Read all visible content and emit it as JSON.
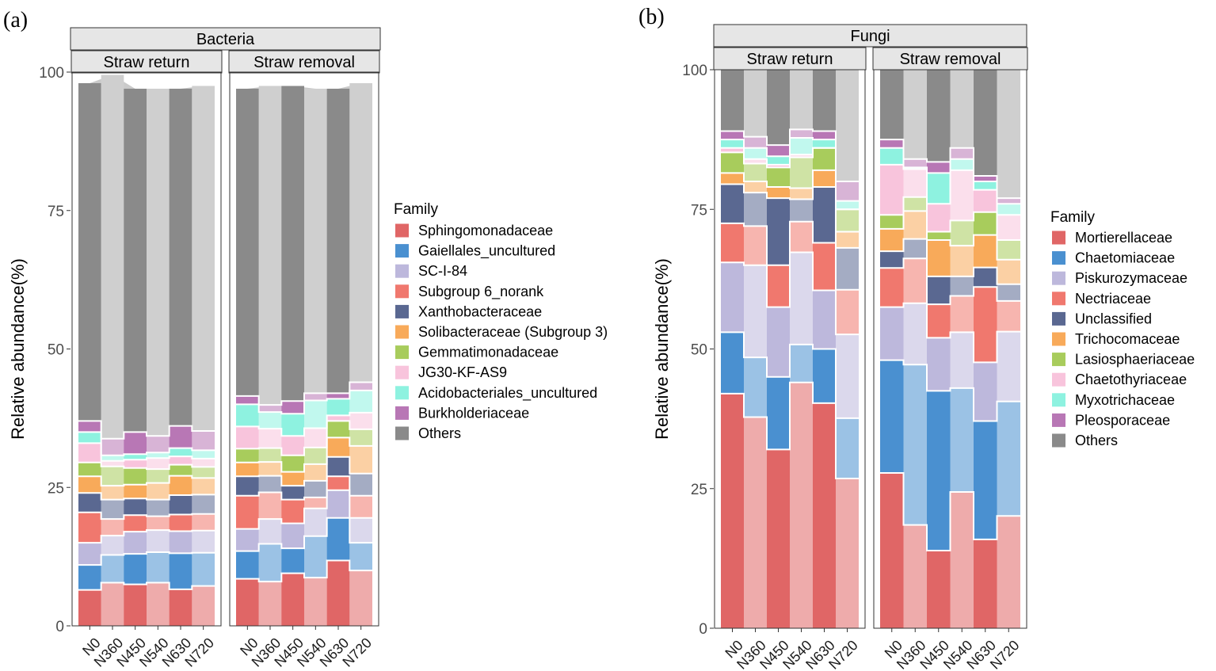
{
  "chart_data": [
    {
      "type": "bar",
      "panel_label": "(a)",
      "title": "Bacteria",
      "facets": [
        "Straw return",
        "Straw removal"
      ],
      "categories": [
        "N0",
        "N360",
        "N450",
        "N540",
        "N630",
        "N720"
      ],
      "ylabel": "Relative abundance(%)",
      "ylim": [
        0,
        100
      ],
      "yticks": [
        "0",
        "25",
        "50",
        "75",
        "100"
      ],
      "legend_title": "Family",
      "series": [
        {
          "name": "Sphingomonadaceae",
          "color": "#E06666",
          "values": [
            [
              6.5,
              7.8,
              7.5,
              7.8,
              6.6,
              7.2
            ],
            [
              8.5,
              8.0,
              9.5,
              8.7,
              11.8,
              10.0
            ]
          ]
        },
        {
          "name": "Gaiellales_uncultured",
          "color": "#4A90D0",
          "values": [
            [
              4.5,
              5.0,
              5.5,
              5.5,
              6.5,
              6.0
            ],
            [
              5.0,
              6.8,
              4.5,
              7.5,
              7.7,
              5.0
            ]
          ]
        },
        {
          "name": "SC-I-84",
          "color": "#BDB8DC",
          "values": [
            [
              4.0,
              3.5,
              4.0,
              4.0,
              4.0,
              4.0
            ],
            [
              4.0,
              4.5,
              4.5,
              5.0,
              5.0,
              4.5
            ]
          ]
        },
        {
          "name": "Subgroup 6_norank",
          "color": "#F0786E",
          "values": [
            [
              5.5,
              3.0,
              3.0,
              2.5,
              3.0,
              3.0
            ],
            [
              6.0,
              4.8,
              4.3,
              2.0,
              2.5,
              4.0
            ]
          ]
        },
        {
          "name": "Xanthobacteraceae",
          "color": "#5A6891",
          "values": [
            [
              3.5,
              3.5,
              3.0,
              3.0,
              3.5,
              3.5
            ],
            [
              3.5,
              3.0,
              2.5,
              3.0,
              3.5,
              4.0
            ]
          ]
        },
        {
          "name": "Solibacteraceae (Subgroup 3)",
          "color": "#F8AA5A",
          "values": [
            [
              3.0,
              2.5,
              2.5,
              3.0,
              3.5,
              3.0
            ],
            [
              2.5,
              2.5,
              2.5,
              3.0,
              3.5,
              5.0
            ]
          ]
        },
        {
          "name": "Gemmatimonadaceae",
          "color": "#A8CC5C",
          "values": [
            [
              2.5,
              3.5,
              3.0,
              2.5,
              2.0,
              2.0
            ],
            [
              2.5,
              2.5,
              3.0,
              3.0,
              3.0,
              3.0
            ]
          ]
        },
        {
          "name": "JG30-KF-AS9",
          "color": "#F8C4DC",
          "values": [
            [
              3.5,
              1.0,
              1.5,
              2.0,
              1.5,
              1.5
            ],
            [
              4.0,
              3.5,
              3.5,
              3.5,
              1.0,
              3.0
            ]
          ]
        },
        {
          "name": "Acidobacteriales_uncultured",
          "color": "#8EF2E0",
          "values": [
            [
              2.0,
              1.0,
              1.0,
              1.0,
              1.5,
              1.5
            ],
            [
              4.0,
              3.0,
              4.0,
              5.0,
              3.0,
              4.0
            ]
          ]
        },
        {
          "name": "Burkholderiaceae",
          "color": "#B877B5",
          "values": [
            [
              2.0,
              3.0,
              4.0,
              3.0,
              4.0,
              3.5
            ],
            [
              1.5,
              1.3,
              2.3,
              1.3,
              1.0,
              1.5
            ]
          ]
        },
        {
          "name": "Others",
          "color": "#8A8A8A",
          "values": [
            [
              61.0,
              65.7,
              62.0,
              62.7,
              60.9,
              62.3
            ],
            [
              55.5,
              57.6,
              56.9,
              55.0,
              55.0,
              54.0
            ]
          ]
        }
      ]
    },
    {
      "type": "bar",
      "panel_label": "(b)",
      "title": "Fungi",
      "facets": [
        "Straw return",
        "Straw removal"
      ],
      "categories": [
        "N0",
        "N360",
        "N450",
        "N540",
        "N630",
        "N720"
      ],
      "ylabel": "Relative abundance(%)",
      "ylim": [
        0,
        100
      ],
      "yticks": [
        "0",
        "25",
        "50",
        "75",
        "100"
      ],
      "legend_title": "Family",
      "series": [
        {
          "name": "Mortierellaceae",
          "color": "#E06666",
          "values": [
            [
              42.0,
              37.8,
              32.0,
              44.0,
              40.3,
              26.8
            ],
            [
              27.8,
              18.5,
              13.9,
              24.4,
              15.9,
              20.1
            ]
          ]
        },
        {
          "name": "Chaetomiaceae",
          "color": "#4A90D0",
          "values": [
            [
              11.0,
              10.7,
              13.0,
              6.8,
              9.7,
              10.8
            ],
            [
              20.2,
              28.7,
              28.6,
              18.6,
              21.2,
              20.5
            ]
          ]
        },
        {
          "name": "Piskurozymaceae",
          "color": "#BDB8DC",
          "values": [
            [
              12.5,
              16.5,
              12.5,
              16.5,
              10.5,
              15.0
            ],
            [
              9.5,
              11.0,
              9.5,
              10.0,
              10.5,
              12.5
            ]
          ]
        },
        {
          "name": "Nectriaceae",
          "color": "#F0786E",
          "values": [
            [
              7.0,
              7.0,
              7.5,
              5.5,
              8.5,
              8.0
            ],
            [
              7.0,
              8.0,
              6.0,
              6.5,
              13.5,
              5.5
            ]
          ]
        },
        {
          "name": "Unclassified",
          "color": "#5A6891",
          "values": [
            [
              7.0,
              6.0,
              12.0,
              4.0,
              10.0,
              7.5
            ],
            [
              3.0,
              3.5,
              5.0,
              3.5,
              3.5,
              3.0
            ]
          ]
        },
        {
          "name": "Trichocomaceae",
          "color": "#F8AA5A",
          "values": [
            [
              2.0,
              2.0,
              2.0,
              2.0,
              3.0,
              2.9
            ],
            [
              4.0,
              5.0,
              6.5,
              5.5,
              5.8,
              4.4
            ]
          ]
        },
        {
          "name": "Lasiosphaeriaceae",
          "color": "#A8CC5C",
          "values": [
            [
              3.7,
              3.2,
              3.5,
              5.5,
              4.0,
              4.0
            ],
            [
              2.5,
              2.5,
              1.5,
              4.5,
              4.1,
              3.5
            ]
          ]
        },
        {
          "name": "Chaetothyriaceae",
          "color": "#F8C4DC",
          "values": [
            [
              0.8,
              0.8,
              0.5,
              0.5,
              0.0,
              0.0
            ],
            [
              9.0,
              5.0,
              5.0,
              9.0,
              4.0,
              4.5
            ]
          ]
        },
        {
          "name": "Myxotrichaceae",
          "color": "#8EF2E0",
          "values": [
            [
              1.5,
              2.0,
              1.5,
              3.0,
              1.5,
              1.5
            ],
            [
              3.0,
              0.3,
              5.5,
              2.0,
              1.5,
              2.0
            ]
          ]
        },
        {
          "name": "Pleosporaceae",
          "color": "#B877B5",
          "values": [
            [
              1.5,
              2.0,
              2.0,
              1.5,
              1.5,
              3.5
            ],
            [
              1.5,
              1.5,
              2.0,
              2.0,
              1.0,
              1.0
            ]
          ]
        },
        {
          "name": "Others",
          "color": "#8A8A8A",
          "values": [
            [
              11.0,
              12.0,
              13.5,
              10.7,
              11.0,
              20.0
            ],
            [
              12.5,
              16.0,
              16.5,
              14.0,
              19.0,
              23.0
            ]
          ]
        }
      ]
    }
  ]
}
